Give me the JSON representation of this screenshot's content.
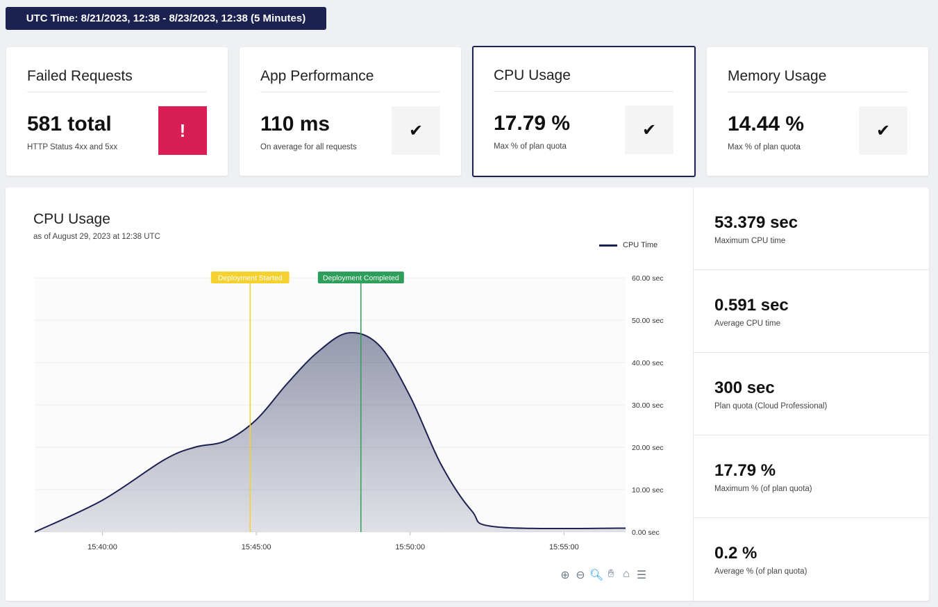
{
  "header": {
    "time_range": "UTC Time: 8/21/2023, 12:38 - 8/23/2023, 12:38 (5 Minutes)"
  },
  "cards": [
    {
      "title": "Failed Requests",
      "value": "581 total",
      "subtitle": "HTTP Status 4xx and 5xx",
      "status_icon": "alert-icon",
      "status_glyph": "!",
      "status_color": "#d81e54"
    },
    {
      "title": "App Performance",
      "value": "110 ms",
      "subtitle": "On average for all requests",
      "status_icon": "check-icon",
      "status_glyph": "✔"
    },
    {
      "title": "CPU Usage",
      "value": "17.79 %",
      "subtitle": "Max % of plan quota",
      "status_icon": "check-icon",
      "status_glyph": "✔",
      "selected": true
    },
    {
      "title": "Memory Usage",
      "value": "14.44 %",
      "subtitle": "Max % of plan quota",
      "status_icon": "check-icon",
      "status_glyph": "✔"
    }
  ],
  "chart_panel": {
    "title": "CPU Usage",
    "subtitle": "as of August 29, 2023 at 12:38 UTC",
    "zoom_tools": [
      "zoom-in-icon",
      "zoom-out-icon",
      "magnifier-icon",
      "pan-hand-icon",
      "home-icon",
      "menu-icon"
    ]
  },
  "chart_data": {
    "type": "area",
    "series": [
      {
        "name": "CPU Time",
        "color": "#1b2251",
        "x": [
          "15:37:48",
          "15:40:00",
          "15:42:00",
          "15:43:00",
          "15:44:00",
          "15:45:00",
          "15:46:00",
          "15:47:00",
          "15:48:00",
          "15:49:00",
          "15:50:00",
          "15:51:00",
          "15:52:00",
          "15:52:48",
          "15:57:00"
        ],
        "values": [
          0,
          7.5,
          17,
          20,
          21.5,
          26.5,
          35,
          42.5,
          47,
          44,
          32,
          16,
          5,
          1.2,
          0.9
        ]
      }
    ],
    "xlabel": "",
    "ylabel": "",
    "x_ticks": [
      "15:40:00",
      "15:45:00",
      "15:50:00",
      "15:55:00"
    ],
    "x_range": [
      "15:37:48",
      "15:57:00"
    ],
    "y_ticks": [
      "0.00 sec",
      "10.00 sec",
      "20.00 sec",
      "30.00 sec",
      "40.00 sec",
      "50.00 sec",
      "60.00 sec"
    ],
    "ylim": [
      0,
      60
    ],
    "annotations": [
      {
        "label": "Deployment Started",
        "x": "15:44:48",
        "color": "#f5d130"
      },
      {
        "label": "Deployment Completed",
        "x": "15:48:24",
        "color": "#2e9e5b"
      }
    ],
    "legend": "top-right",
    "grid": true
  },
  "stats": [
    {
      "value": "53.379 sec",
      "label": "Maximum CPU time"
    },
    {
      "value": "0.591 sec",
      "label": "Average CPU time"
    },
    {
      "value": "300 sec",
      "label": "Plan quota (Cloud Professional)"
    },
    {
      "value": "17.79 %",
      "label": "Maximum % (of plan quota)"
    },
    {
      "value": "0.2 %",
      "label": "Average % (of plan quota)"
    }
  ]
}
